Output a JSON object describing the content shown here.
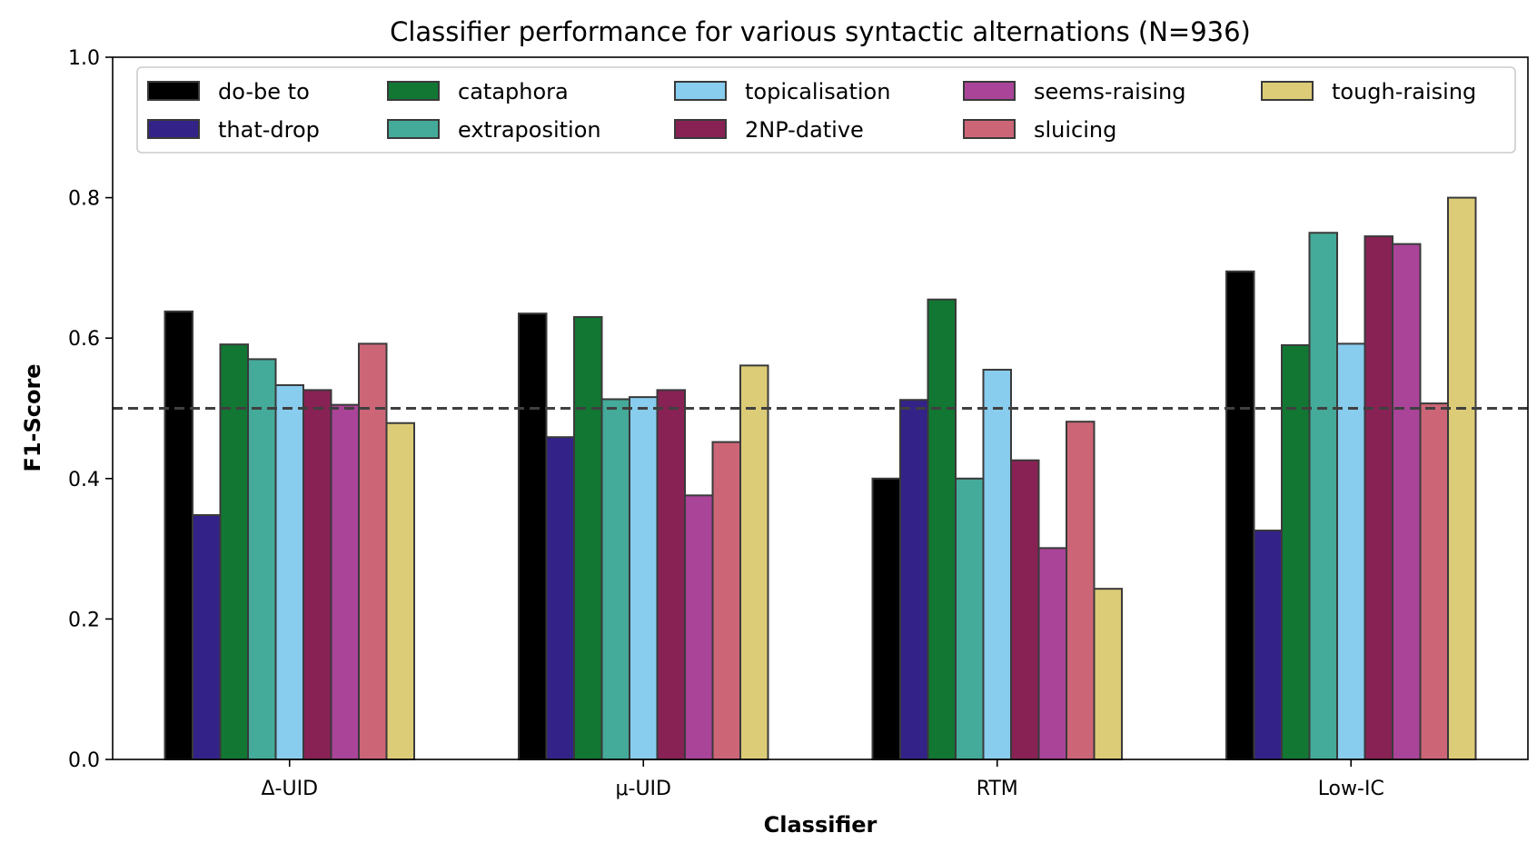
{
  "chart_data": {
    "type": "bar",
    "title": "Classifier performance for various syntactic alternations (N=936)",
    "xlabel": "Classifier",
    "ylabel": "F1-Score",
    "ylim": [
      0,
      1.0
    ],
    "yticks": [
      "0.0",
      "0.2",
      "0.4",
      "0.6",
      "0.8",
      "1.0"
    ],
    "categories": [
      "Δ-UID",
      "μ-UID",
      "RTM",
      "Low-IC"
    ],
    "reference_line": {
      "y": 0.5,
      "style": "dashed"
    },
    "legend_position": "top",
    "grid": false,
    "series": [
      {
        "name": "do-be to",
        "color": "#000000",
        "values": [
          0.638,
          0.635,
          0.4,
          0.695
        ]
      },
      {
        "name": "that-drop",
        "color": "#332288",
        "values": [
          0.348,
          0.459,
          0.512,
          0.326
        ]
      },
      {
        "name": "cataphora",
        "color": "#117733",
        "values": [
          0.591,
          0.63,
          0.655,
          0.59
        ]
      },
      {
        "name": "extraposition",
        "color": "#44AA99",
        "values": [
          0.57,
          0.513,
          0.4,
          0.75
        ]
      },
      {
        "name": "topicalisation",
        "color": "#88CCEE",
        "values": [
          0.533,
          0.516,
          0.555,
          0.592
        ]
      },
      {
        "name": "2NP-dative",
        "color": "#882255",
        "values": [
          0.526,
          0.526,
          0.426,
          0.745
        ]
      },
      {
        "name": "seems-raising",
        "color": "#AA4499",
        "values": [
          0.505,
          0.376,
          0.301,
          0.734
        ]
      },
      {
        "name": "sluicing",
        "color": "#CC6677",
        "values": [
          0.592,
          0.452,
          0.481,
          0.507
        ]
      },
      {
        "name": "tough-raising",
        "color": "#DDCC77",
        "values": [
          0.479,
          0.561,
          0.243,
          0.8
        ]
      }
    ]
  }
}
